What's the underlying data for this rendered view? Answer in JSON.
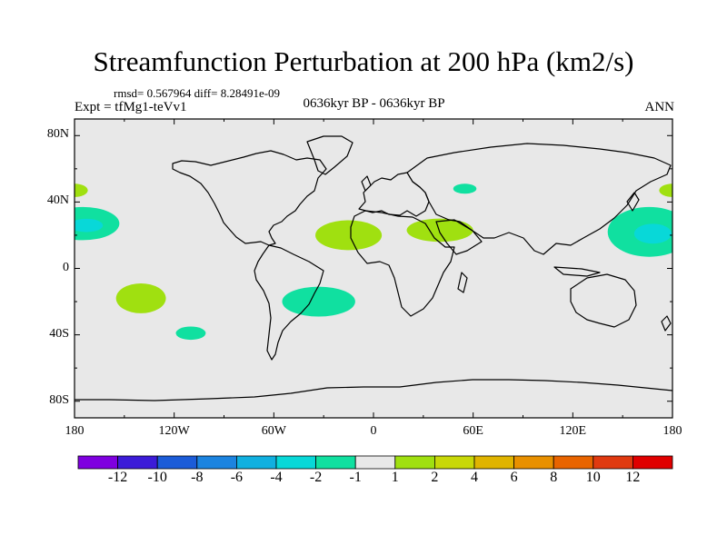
{
  "title": "Streamfunction Perturbation at 200 hPa (km2/s)",
  "stats": "rmsd= 0.567964 diff= 8.28491e-09",
  "expt": "Expt = tfMg1-teVv1",
  "period": "0636kyr BP - 0636kyr BP",
  "season": "ANN",
  "lat_labels": [
    {
      "lat": 80,
      "text": "80N"
    },
    {
      "lat": 40,
      "text": "40N"
    },
    {
      "lat": 0,
      "text": "0"
    },
    {
      "lat": -40,
      "text": "40S"
    },
    {
      "lat": -80,
      "text": "80S"
    }
  ],
  "lon_labels": [
    {
      "lon": -180,
      "text": "180"
    },
    {
      "lon": -120,
      "text": "120W"
    },
    {
      "lon": -60,
      "text": "60W"
    },
    {
      "lon": 0,
      "text": "0"
    },
    {
      "lon": 60,
      "text": "60E"
    },
    {
      "lon": 120,
      "text": "120E"
    },
    {
      "lon": 180,
      "text": "180"
    }
  ],
  "colorbar": {
    "colors": [
      "#7f00e0",
      "#3c1cd8",
      "#1c5cd8",
      "#1c84e0",
      "#10b0e0",
      "#08d8d8",
      "#10e0a0",
      "#e8e8e8",
      "#a0e010",
      "#c8d808",
      "#e0b400",
      "#e89000",
      "#e86400",
      "#e03a10",
      "#e00000"
    ],
    "labels": [
      "-12",
      "-10",
      "-8",
      "-6",
      "-4",
      "-2",
      "-1",
      "1",
      "2",
      "4",
      "6",
      "8",
      "10",
      "12"
    ]
  },
  "anomalies": [
    {
      "lon": -175,
      "lat": 27,
      "rlon": 22,
      "rlat": 10,
      "color": "#10e0a0",
      "core_color": "#08d8d8"
    },
    {
      "lon": -180,
      "lat": 47,
      "rlon": 8,
      "rlat": 4,
      "color": "#a0e010"
    },
    {
      "lon": -140,
      "lat": -18,
      "rlon": 15,
      "rlat": 9,
      "color": "#a0e010"
    },
    {
      "lon": -110,
      "lat": -39,
      "rlon": 9,
      "rlat": 4,
      "color": "#10e0a0"
    },
    {
      "lon": -33,
      "lat": -20,
      "rlon": 22,
      "rlat": 9,
      "color": "#10e0a0"
    },
    {
      "lon": -15,
      "lat": 20,
      "rlon": 20,
      "rlat": 9,
      "color": "#a0e010"
    },
    {
      "lon": 40,
      "lat": 23,
      "rlon": 20,
      "rlat": 7,
      "color": "#a0e010"
    },
    {
      "lon": 55,
      "lat": 48,
      "rlon": 7,
      "rlat": 3,
      "color": "#10e0a0"
    },
    {
      "lon": 166,
      "lat": 22,
      "rlon": 25,
      "rlat": 15,
      "color": "#10e0a0",
      "core_color": "#08d8d8"
    },
    {
      "lon": 180,
      "lat": 47,
      "rlon": 8,
      "rlat": 4,
      "color": "#a0e010"
    }
  ]
}
